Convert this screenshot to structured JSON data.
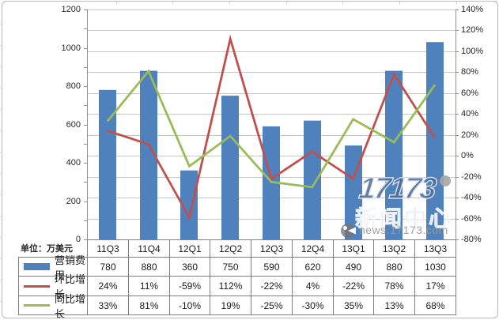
{
  "unit_label": "单位：万美元",
  "colors": {
    "bar": "#4f81bd",
    "line_qoq": "#c0504d",
    "line_yoy": "#9bbb59",
    "gridline": "#c6c6c6",
    "axis": "#8f8f8f",
    "table_border": "#7f7f7f",
    "text": "#1a1a1a",
    "watermark_blue": "#4f6d9b"
  },
  "chart_data": {
    "type": "combo-bar-line",
    "categories": [
      "11Q3",
      "11Q4",
      "12Q1",
      "12Q2",
      "12Q3",
      "12Q4",
      "13Q1",
      "13Q2",
      "13Q3"
    ],
    "series": [
      {
        "name": "营销费用",
        "type": "bar",
        "axis": "left",
        "values": [
          780,
          880,
          360,
          750,
          590,
          620,
          490,
          880,
          1030
        ]
      },
      {
        "name": "环比增长",
        "type": "line",
        "axis": "right",
        "values": [
          24,
          11,
          -59,
          112,
          -22,
          4,
          -22,
          78,
          17
        ]
      },
      {
        "name": "同比增长",
        "type": "line",
        "axis": "right",
        "values": [
          33,
          81,
          -10,
          19,
          -25,
          -30,
          35,
          13,
          68
        ]
      }
    ],
    "left_axis": {
      "min": 0,
      "max": 1200,
      "step": 200,
      "tick_labels": [
        "1200",
        "1000",
        "800",
        "600",
        "400",
        "200",
        "0"
      ]
    },
    "right_axis": {
      "min": -80,
      "max": 140,
      "step": 20,
      "tick_labels": [
        "140%",
        "120%",
        "100%",
        "80%",
        "60%",
        "40%",
        "20%",
        "0%",
        "-20%",
        "-40%",
        "-60%",
        "-80%"
      ]
    },
    "grid": "horizontal",
    "legend_position": "data-table-left",
    "title": "",
    "xlabel": "",
    "ylabel_left": "单位：万美元",
    "ylabel_right": "%"
  },
  "table": {
    "header": [
      "11Q3",
      "11Q4",
      "12Q1",
      "12Q2",
      "12Q3",
      "12Q4",
      "13Q1",
      "13Q2",
      "13Q3"
    ],
    "rows": [
      {
        "label": "营销费用",
        "swatch": "bar",
        "cells": [
          "780",
          "880",
          "360",
          "750",
          "590",
          "620",
          "490",
          "880",
          "1030"
        ]
      },
      {
        "label": "环比增长",
        "swatch": "line_qoq",
        "cells": [
          "24%",
          "11%",
          "-59%",
          "112%",
          "-22%",
          "4%",
          "-22%",
          "78%",
          "17%"
        ]
      },
      {
        "label": "同比增长",
        "swatch": "line_yoy",
        "cells": [
          "33%",
          "81%",
          "-10%",
          "19%",
          "-25%",
          "-30%",
          "35%",
          "13%",
          "68%"
        ]
      }
    ]
  },
  "watermark": {
    "logo_text": "17173",
    "title": "新闻中心",
    "site": "news.17173.com"
  }
}
